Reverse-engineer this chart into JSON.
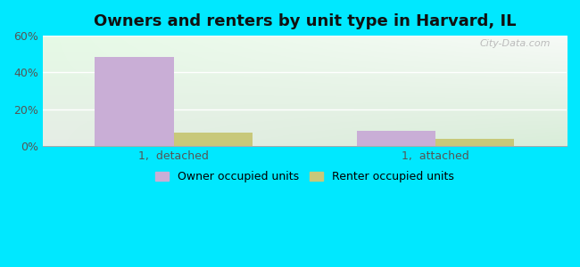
{
  "title": "Owners and renters by unit type in Harvard, IL",
  "categories": [
    "1,  detached",
    "1,  attached"
  ],
  "owner_values": [
    48.5,
    8.5
  ],
  "renter_values": [
    7.5,
    4.0
  ],
  "owner_color": "#c9aed6",
  "renter_color": "#c8c87a",
  "ylim": [
    0,
    60
  ],
  "yticks": [
    0,
    20,
    40,
    60
  ],
  "ytick_labels": [
    "0%",
    "20%",
    "40%",
    "60%"
  ],
  "background_outer": "#00e8ff",
  "bg_top_left": "#e8f5e8",
  "bg_top_right": "#f8fff8",
  "bg_bottom": "#d0ebd0",
  "watermark": "City-Data.com",
  "legend_owner": "Owner occupied units",
  "legend_renter": "Renter occupied units",
  "bar_width": 0.3,
  "title_fontsize": 13,
  "grid_color": "#e0ece0",
  "spine_color": "#aaaaaa"
}
